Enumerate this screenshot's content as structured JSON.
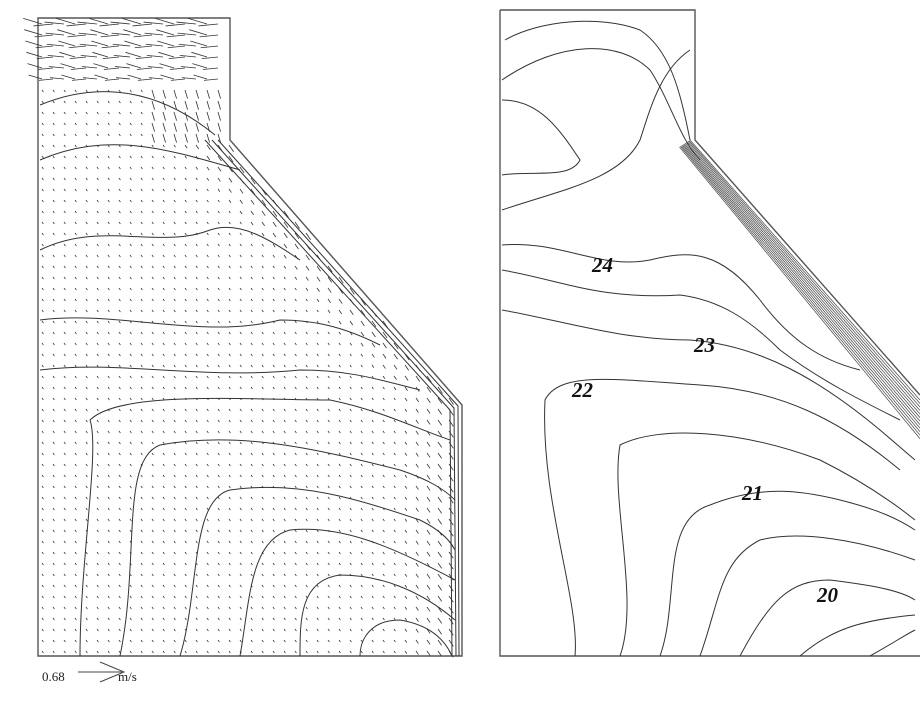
{
  "velocity_panel": {
    "reference_vector": {
      "magnitude": "0.68",
      "unit": "m/s"
    }
  },
  "temperature_panel": {
    "contour_labels": [
      "24",
      "23",
      "22",
      "21",
      "20"
    ]
  }
}
